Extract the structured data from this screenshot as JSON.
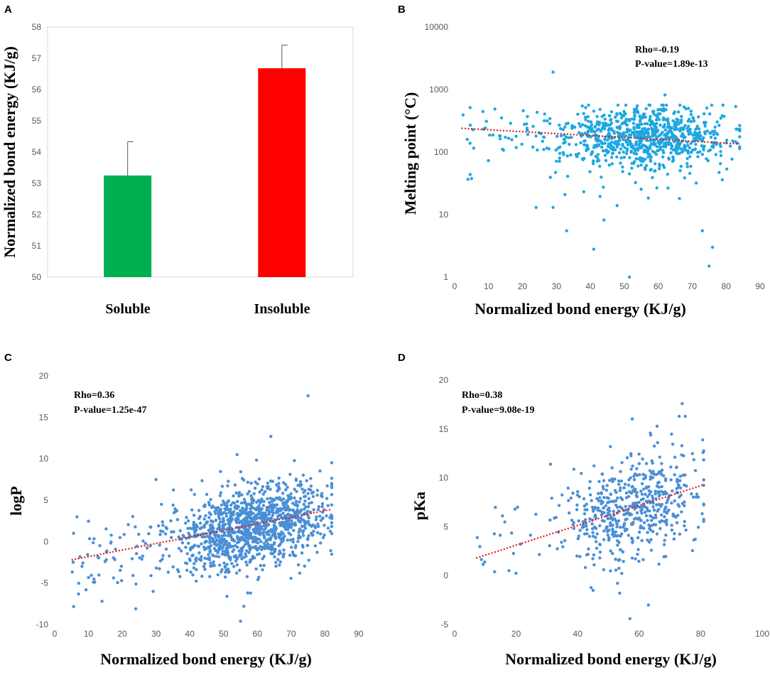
{
  "chart_data": [
    {
      "panel": "A",
      "type": "bar",
      "categories": [
        "Soluble",
        "Insoluble"
      ],
      "values": [
        53.25,
        56.68
      ],
      "error_plus": [
        1.08,
        0.74
      ],
      "colors": [
        "#00b050",
        "#ff0000"
      ],
      "ylabel": "Normalized bond energy (KJ/g)",
      "ylim": [
        50,
        58
      ],
      "yticks": [
        "50",
        "51",
        "52",
        "53",
        "54",
        "55",
        "56",
        "57",
        "58"
      ]
    },
    {
      "panel": "B",
      "type": "scatter",
      "xlabel": "Normalized bond energy (KJ/g)",
      "ylabel": "Melting point (°C)",
      "xlim": [
        0,
        90
      ],
      "ylim": [
        1,
        10000
      ],
      "yscale": "log",
      "xticks": [
        "0",
        "10",
        "20",
        "30",
        "40",
        "50",
        "60",
        "70",
        "80",
        "90"
      ],
      "yticks": [
        "1",
        "10",
        "100",
        "1000",
        "10000"
      ],
      "stats": [
        "Rho=-0.19",
        "P-value=1.89e-13"
      ],
      "trend": {
        "x": [
          2,
          84
        ],
        "y": [
          240,
          135
        ]
      },
      "point_color": "#1ea7e1",
      "n_points": 900,
      "cloud": {
        "x_center": 56,
        "x_spread": 12,
        "x_min": 2,
        "x_max": 84,
        "log_center": 2.28,
        "log_spread": 0.22
      },
      "outliers": [
        [
          29,
          1900
        ],
        [
          62,
          820
        ],
        [
          51.5,
          1
        ],
        [
          41,
          2.8
        ],
        [
          75,
          1.5
        ],
        [
          76,
          3
        ],
        [
          33,
          5.5
        ],
        [
          73,
          5.5
        ],
        [
          44,
          8.2
        ],
        [
          24,
          13
        ],
        [
          29,
          13
        ]
      ]
    },
    {
      "panel": "C",
      "type": "scatter",
      "xlabel": "Normalized bond energy (KJ/g)",
      "ylabel": "logP",
      "xlim": [
        0,
        90
      ],
      "ylim": [
        -10,
        20
      ],
      "xticks": [
        "0",
        "10",
        "20",
        "30",
        "40",
        "50",
        "60",
        "70",
        "80",
        "90"
      ],
      "yticks": [
        "-10",
        "-5",
        "0",
        "5",
        "10",
        "15",
        "20"
      ],
      "stats": [
        "Rho=0.36",
        "P-value=1.25e-47"
      ],
      "trend": {
        "x": [
          5,
          82
        ],
        "y": [
          -2.2,
          3.9
        ]
      },
      "point_color": "#4a8fd6",
      "n_points": 1300,
      "cloud": {
        "x_center": 58,
        "x_spread": 11,
        "x_min": 5,
        "x_max": 82,
        "slope": 0.079,
        "intercept": -2.6,
        "y_spread": 2.4
      },
      "outliers": [
        [
          75,
          17.6
        ],
        [
          64,
          12.7
        ],
        [
          54,
          10.5
        ],
        [
          14,
          -7.2
        ],
        [
          24,
          -8.1
        ],
        [
          55,
          -9.6
        ],
        [
          56,
          -7.8
        ],
        [
          51,
          -6.6
        ],
        [
          30,
          7.5
        ]
      ]
    },
    {
      "panel": "D",
      "type": "scatter",
      "xlabel": "Normalized bond energy (KJ/g)",
      "ylabel": "pKa",
      "xlim": [
        0,
        100
      ],
      "ylim": [
        -5,
        20
      ],
      "xticks": [
        "0",
        "20",
        "40",
        "60",
        "80",
        "100"
      ],
      "yticks": [
        "-5",
        "0",
        "5",
        "10",
        "15",
        "20"
      ],
      "stats": [
        "Rho=0.38",
        "P-value=9.08e-19"
      ],
      "trend": {
        "x": [
          7,
          81
        ],
        "y": [
          1.8,
          9.3
        ]
      },
      "point_color": "#4a8fd6",
      "n_points": 560,
      "cloud": {
        "x_center": 58,
        "x_spread": 11,
        "x_min": 7,
        "x_max": 81,
        "slope": 0.1,
        "intercept": 1.2,
        "y_spread": 2.8
      },
      "outliers": [
        [
          74,
          17.6
        ],
        [
          73,
          16.3
        ],
        [
          75,
          16.3
        ],
        [
          57,
          -4.4
        ],
        [
          63,
          -3
        ],
        [
          13,
          0.4
        ],
        [
          45,
          -1.5
        ]
      ]
    }
  ]
}
